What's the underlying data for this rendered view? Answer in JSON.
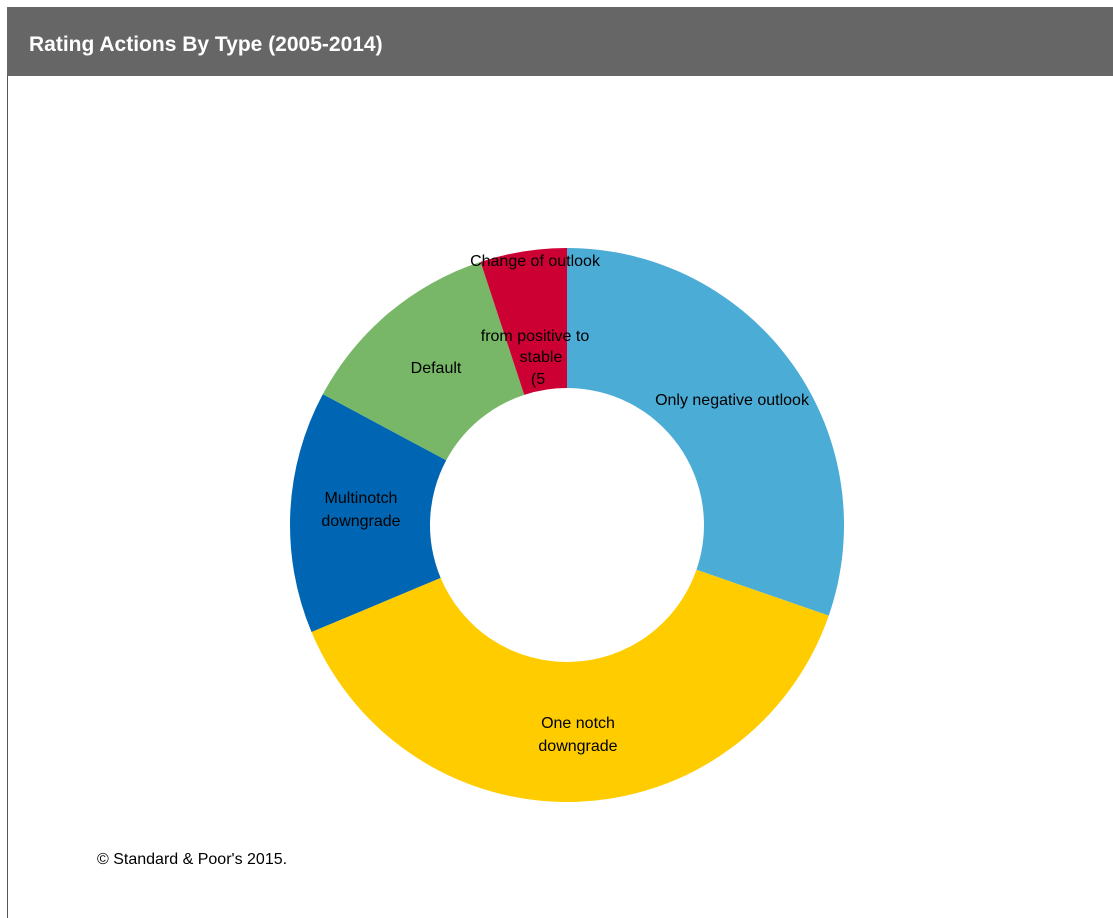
{
  "header": {
    "title": "Rating Actions  By Type (2005-2014)"
  },
  "source": "© Standard & Poor's 2015.",
  "colors": {
    "header_bg": "#666666",
    "header_text": "#ffffff"
  },
  "chart_data": {
    "type": "pie",
    "title": "Rating Actions  By Type (2005-2014)",
    "donut": true,
    "slices": [
      {
        "name": "Only negative outlook",
        "label_lines": [
          "Only negative outlook"
        ],
        "value": 30,
        "color": "#4BACD6"
      },
      {
        "name": "One notch downgrade",
        "label_lines": [
          "One notch",
          "downgrade"
        ],
        "value": 38,
        "color": "#FFCC00"
      },
      {
        "name": "Multinotch downgrade",
        "label_lines": [
          "Multinotch",
          "downgrade"
        ],
        "value": 14,
        "color": "#0066B3"
      },
      {
        "name": "Default",
        "label_lines": [
          "Default"
        ],
        "value": 12,
        "color": "#77B767"
      },
      {
        "name": "Change of outlook from positive to stable (5",
        "label_lines": [
          "Change of outlook",
          "from positive to",
          "stable",
          "(5"
        ],
        "value": 5,
        "color": "#CC0033"
      }
    ]
  }
}
